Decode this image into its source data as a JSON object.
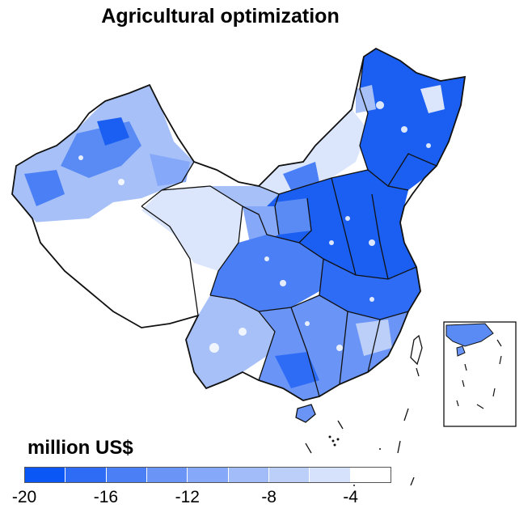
{
  "title": "Agricultural optimization",
  "legend": {
    "unit_label": "million US$",
    "classes": [
      "#0a57f5",
      "#2e6cf5",
      "#4b7ff6",
      "#6a95f7",
      "#86a8f8",
      "#a1bcf9",
      "#bccff9",
      "#d6e2fb",
      "#ffffff"
    ],
    "tick_labels": [
      "-20",
      "-16",
      "-12",
      "-8",
      "-4"
    ]
  },
  "colors": {
    "deep": "#1a5ff2",
    "mid": "#5a8bf5",
    "light": "#a7c1f8",
    "pale": "#dbe6fc",
    "none": "#ffffff",
    "border": "#111111"
  }
}
